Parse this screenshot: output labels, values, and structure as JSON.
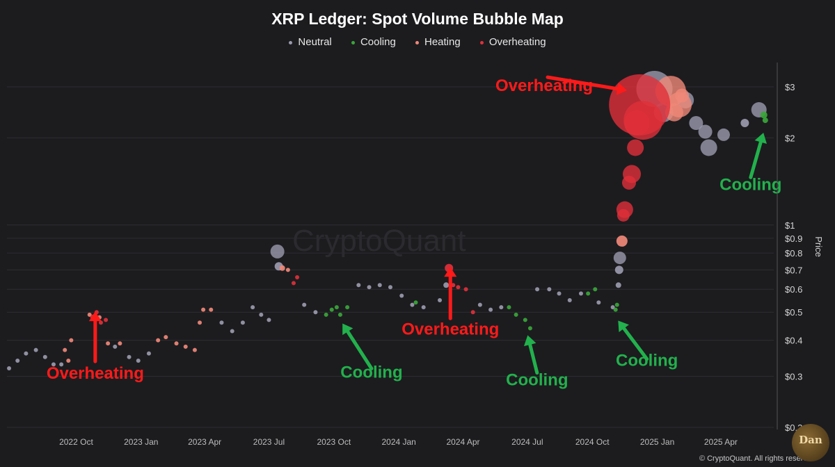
{
  "chart_data": {
    "type": "scatter",
    "title": "XRP Ledger: Spot Volume Bubble Map",
    "ylabel": "Price",
    "yscale": "log",
    "ylim": [
      0.2,
      3.6
    ],
    "y_ticks": [
      {
        "value": 3,
        "label": "$3"
      },
      {
        "value": 2,
        "label": "$2"
      },
      {
        "value": 1,
        "label": "$1"
      },
      {
        "value": 0.9,
        "label": "$0.9"
      },
      {
        "value": 0.8,
        "label": "$0.8"
      },
      {
        "value": 0.7,
        "label": "$0.7"
      },
      {
        "value": 0.6,
        "label": "$0.6"
      },
      {
        "value": 0.5,
        "label": "$0.5"
      },
      {
        "value": 0.4,
        "label": "$0.4"
      },
      {
        "value": 0.3,
        "label": "$0.3"
      },
      {
        "value": 0.2,
        "label": "$0.2"
      }
    ],
    "x_range": [
      "2022-06-25",
      "2025-06-15"
    ],
    "x_ticks": [
      {
        "date": "2022-10-01",
        "label": "2022 Oct"
      },
      {
        "date": "2023-01-01",
        "label": "2023 Jan"
      },
      {
        "date": "2023-04-01",
        "label": "2023 Apr"
      },
      {
        "date": "2023-07-01",
        "label": "2023 Jul"
      },
      {
        "date": "2023-10-01",
        "label": "2023 Oct"
      },
      {
        "date": "2024-01-01",
        "label": "2024 Jan"
      },
      {
        "date": "2024-04-01",
        "label": "2024 Apr"
      },
      {
        "date": "2024-07-01",
        "label": "2024 Jul"
      },
      {
        "date": "2024-10-01",
        "label": "2024 Oct"
      },
      {
        "date": "2025-01-01",
        "label": "2025 Jan"
      },
      {
        "date": "2025-04-01",
        "label": "2025 Apr"
      }
    ],
    "legend": [
      {
        "name": "Neutral",
        "color": "#9a9aae"
      },
      {
        "name": "Cooling",
        "color": "#3aa63a"
      },
      {
        "name": "Heating",
        "color": "#f08878"
      },
      {
        "name": "Overheating",
        "color": "#e0303a"
      }
    ],
    "series": [
      {
        "name": "Neutral",
        "color": "#9a9aae",
        "points": [
          {
            "date": "2022-06-28",
            "price": 0.32,
            "size": 3
          },
          {
            "date": "2022-07-10",
            "price": 0.34,
            "size": 3
          },
          {
            "date": "2022-07-22",
            "price": 0.36,
            "size": 3
          },
          {
            "date": "2022-08-05",
            "price": 0.37,
            "size": 3
          },
          {
            "date": "2022-08-18",
            "price": 0.35,
            "size": 3
          },
          {
            "date": "2022-08-30",
            "price": 0.33,
            "size": 3
          },
          {
            "date": "2022-09-10",
            "price": 0.33,
            "size": 3
          },
          {
            "date": "2022-11-25",
            "price": 0.38,
            "size": 3
          },
          {
            "date": "2022-12-15",
            "price": 0.35,
            "size": 3
          },
          {
            "date": "2022-12-28",
            "price": 0.34,
            "size": 3
          },
          {
            "date": "2023-01-12",
            "price": 0.36,
            "size": 3
          },
          {
            "date": "2023-04-25",
            "price": 0.46,
            "size": 3
          },
          {
            "date": "2023-05-10",
            "price": 0.43,
            "size": 3
          },
          {
            "date": "2023-05-25",
            "price": 0.46,
            "size": 3
          },
          {
            "date": "2023-06-08",
            "price": 0.52,
            "size": 3
          },
          {
            "date": "2023-06-20",
            "price": 0.49,
            "size": 3
          },
          {
            "date": "2023-07-01",
            "price": 0.47,
            "size": 3
          },
          {
            "date": "2023-07-13",
            "price": 0.81,
            "size": 10
          },
          {
            "date": "2023-07-15",
            "price": 0.72,
            "size": 6
          },
          {
            "date": "2023-08-20",
            "price": 0.53,
            "size": 3
          },
          {
            "date": "2023-09-05",
            "price": 0.5,
            "size": 3
          },
          {
            "date": "2023-11-05",
            "price": 0.62,
            "size": 3
          },
          {
            "date": "2023-11-20",
            "price": 0.61,
            "size": 3
          },
          {
            "date": "2023-12-05",
            "price": 0.62,
            "size": 3
          },
          {
            "date": "2023-12-20",
            "price": 0.61,
            "size": 3
          },
          {
            "date": "2024-01-05",
            "price": 0.57,
            "size": 3
          },
          {
            "date": "2024-01-20",
            "price": 0.53,
            "size": 3
          },
          {
            "date": "2024-02-05",
            "price": 0.52,
            "size": 3
          },
          {
            "date": "2024-02-28",
            "price": 0.55,
            "size": 3
          },
          {
            "date": "2024-03-08",
            "price": 0.62,
            "size": 4
          },
          {
            "date": "2024-04-25",
            "price": 0.53,
            "size": 3
          },
          {
            "date": "2024-05-10",
            "price": 0.51,
            "size": 3
          },
          {
            "date": "2024-05-25",
            "price": 0.52,
            "size": 3
          },
          {
            "date": "2024-07-15",
            "price": 0.6,
            "size": 3
          },
          {
            "date": "2024-08-01",
            "price": 0.6,
            "size": 3
          },
          {
            "date": "2024-08-15",
            "price": 0.58,
            "size": 3
          },
          {
            "date": "2024-08-30",
            "price": 0.55,
            "size": 3
          },
          {
            "date": "2024-09-15",
            "price": 0.58,
            "size": 3
          },
          {
            "date": "2024-10-10",
            "price": 0.54,
            "size": 3
          },
          {
            "date": "2024-10-30",
            "price": 0.52,
            "size": 3
          },
          {
            "date": "2024-11-07",
            "price": 0.62,
            "size": 4
          },
          {
            "date": "2024-11-08",
            "price": 0.7,
            "size": 6
          },
          {
            "date": "2024-11-09",
            "price": 0.77,
            "size": 9
          },
          {
            "date": "2024-12-28",
            "price": 2.95,
            "size": 26
          },
          {
            "date": "2025-01-10",
            "price": 2.45,
            "size": 14
          },
          {
            "date": "2025-02-10",
            "price": 2.7,
            "size": 12
          },
          {
            "date": "2025-02-25",
            "price": 2.25,
            "size": 10
          },
          {
            "date": "2025-03-10",
            "price": 2.1,
            "size": 10
          },
          {
            "date": "2025-03-15",
            "price": 1.85,
            "size": 12
          },
          {
            "date": "2025-04-05",
            "price": 2.05,
            "size": 9
          },
          {
            "date": "2025-05-05",
            "price": 2.25,
            "size": 6
          },
          {
            "date": "2025-05-25",
            "price": 2.5,
            "size": 11
          }
        ]
      },
      {
        "name": "Cooling",
        "color": "#3aa63a",
        "points": [
          {
            "date": "2023-09-20",
            "price": 0.49,
            "size": 3
          },
          {
            "date": "2023-09-28",
            "price": 0.51,
            "size": 3
          },
          {
            "date": "2023-10-05",
            "price": 0.52,
            "size": 3
          },
          {
            "date": "2023-10-10",
            "price": 0.49,
            "size": 3
          },
          {
            "date": "2023-10-20",
            "price": 0.52,
            "size": 3
          },
          {
            "date": "2024-01-25",
            "price": 0.54,
            "size": 3
          },
          {
            "date": "2024-06-05",
            "price": 0.52,
            "size": 3
          },
          {
            "date": "2024-06-15",
            "price": 0.49,
            "size": 3
          },
          {
            "date": "2024-06-28",
            "price": 0.47,
            "size": 3
          },
          {
            "date": "2024-07-05",
            "price": 0.44,
            "size": 3
          },
          {
            "date": "2024-09-25",
            "price": 0.58,
            "size": 3
          },
          {
            "date": "2024-10-05",
            "price": 0.6,
            "size": 3
          },
          {
            "date": "2024-11-03",
            "price": 0.51,
            "size": 3
          },
          {
            "date": "2024-11-05",
            "price": 0.53,
            "size": 3
          },
          {
            "date": "2025-06-01",
            "price": 2.4,
            "size": 5
          },
          {
            "date": "2025-06-03",
            "price": 2.3,
            "size": 4
          }
        ]
      },
      {
        "name": "Heating",
        "color": "#f08878",
        "points": [
          {
            "date": "2022-09-15",
            "price": 0.37,
            "size": 3
          },
          {
            "date": "2022-09-20",
            "price": 0.34,
            "size": 3
          },
          {
            "date": "2022-09-24",
            "price": 0.4,
            "size": 3
          },
          {
            "date": "2022-10-20",
            "price": 0.49,
            "size": 3
          },
          {
            "date": "2022-11-03",
            "price": 0.48,
            "size": 3
          },
          {
            "date": "2022-11-15",
            "price": 0.39,
            "size": 3
          },
          {
            "date": "2022-12-02",
            "price": 0.39,
            "size": 3
          },
          {
            "date": "2023-01-25",
            "price": 0.4,
            "size": 3
          },
          {
            "date": "2023-02-05",
            "price": 0.41,
            "size": 3
          },
          {
            "date": "2023-02-20",
            "price": 0.39,
            "size": 3
          },
          {
            "date": "2023-03-05",
            "price": 0.38,
            "size": 3
          },
          {
            "date": "2023-03-18",
            "price": 0.37,
            "size": 3
          },
          {
            "date": "2023-03-25",
            "price": 0.46,
            "size": 3
          },
          {
            "date": "2023-03-30",
            "price": 0.51,
            "size": 3
          },
          {
            "date": "2023-04-10",
            "price": 0.51,
            "size": 3
          },
          {
            "date": "2023-07-20",
            "price": 0.71,
            "size": 4
          },
          {
            "date": "2023-07-28",
            "price": 0.7,
            "size": 3
          },
          {
            "date": "2024-11-12",
            "price": 0.88,
            "size": 8
          },
          {
            "date": "2025-01-20",
            "price": 2.9,
            "size": 22
          },
          {
            "date": "2025-02-01",
            "price": 2.6,
            "size": 18
          },
          {
            "date": "2025-02-05",
            "price": 2.8,
            "size": 10
          },
          {
            "date": "2025-01-25",
            "price": 2.45,
            "size": 13
          }
        ]
      },
      {
        "name": "Overheating",
        "color": "#e0303a",
        "points": [
          {
            "date": "2022-10-25",
            "price": 0.48,
            "size": 4
          },
          {
            "date": "2022-10-30",
            "price": 0.5,
            "size": 3
          },
          {
            "date": "2022-11-05",
            "price": 0.46,
            "size": 3
          },
          {
            "date": "2022-11-12",
            "price": 0.47,
            "size": 3
          },
          {
            "date": "2023-08-05",
            "price": 0.63,
            "size": 3
          },
          {
            "date": "2023-08-10",
            "price": 0.66,
            "size": 3
          },
          {
            "date": "2024-03-12",
            "price": 0.71,
            "size": 6
          },
          {
            "date": "2024-03-18",
            "price": 0.62,
            "size": 3
          },
          {
            "date": "2024-03-25",
            "price": 0.61,
            "size": 3
          },
          {
            "date": "2024-04-05",
            "price": 0.6,
            "size": 3
          },
          {
            "date": "2024-04-15",
            "price": 0.5,
            "size": 3
          },
          {
            "date": "2024-11-14",
            "price": 1.08,
            "size": 9
          },
          {
            "date": "2024-11-16",
            "price": 1.13,
            "size": 12
          },
          {
            "date": "2024-11-22",
            "price": 1.4,
            "size": 10
          },
          {
            "date": "2024-11-26",
            "price": 1.5,
            "size": 13
          },
          {
            "date": "2024-12-01",
            "price": 1.85,
            "size": 12
          },
          {
            "date": "2024-12-03",
            "price": 2.25,
            "size": 18
          },
          {
            "date": "2024-12-07",
            "price": 2.6,
            "size": 44
          },
          {
            "date": "2024-12-12",
            "price": 2.3,
            "size": 28
          }
        ]
      }
    ],
    "annotations": [
      {
        "text": "Overheating",
        "kind": "overheating",
        "target_date": "2022-10-28",
        "target_price": 0.52
      },
      {
        "text": "Overheating",
        "kind": "overheating",
        "target_date": "2024-03-14",
        "target_price": 0.74
      },
      {
        "text": "Overheating",
        "kind": "overheating",
        "target_date": "2024-11-25",
        "target_price": 2.9
      },
      {
        "text": "Cooling",
        "kind": "cooling",
        "target_date": "2023-10-10",
        "target_price": 0.47
      },
      {
        "text": "Cooling",
        "kind": "cooling",
        "target_date": "2024-06-30",
        "target_price": 0.43
      },
      {
        "text": "Cooling",
        "kind": "cooling",
        "target_date": "2024-11-03",
        "target_price": 0.48
      },
      {
        "text": "Cooling",
        "kind": "cooling",
        "target_date": "2025-06-02",
        "target_price": 2.15
      }
    ]
  },
  "annotation_colors": {
    "overheating": "#ff1a1a",
    "cooling": "#22b14c"
  },
  "watermark": "CryptoQuant",
  "copyright": "© CryptoQuant. All rights reserved",
  "logo_text": "Dan"
}
